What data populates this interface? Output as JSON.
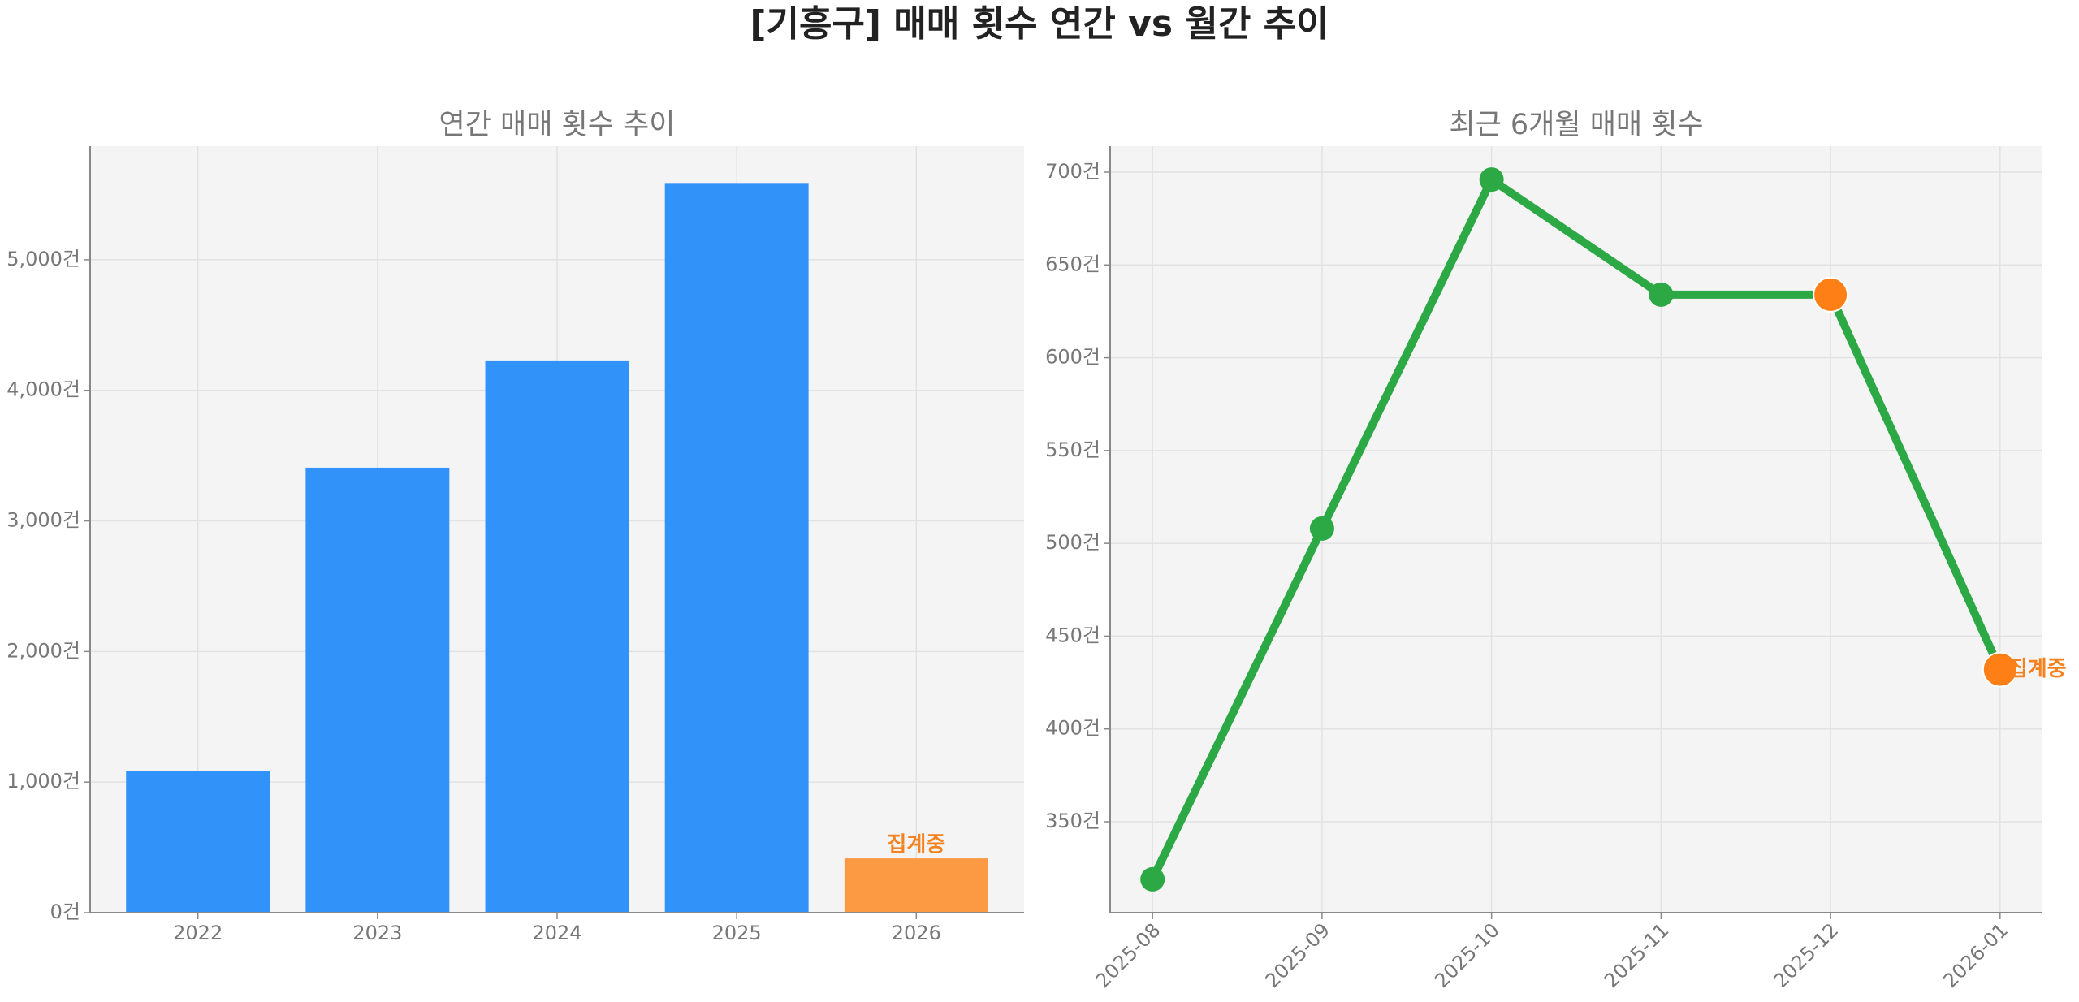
{
  "title": "[기흥구] 매매 횟수 연간 vs 월간 추이",
  "chart_data": [
    {
      "type": "bar",
      "title": "연간 매매 횟수 추이",
      "categories": [
        "2022",
        "2023",
        "2024",
        "2025",
        "2026"
      ],
      "values": [
        1085,
        3408,
        4229,
        5588,
        416
      ],
      "colors": [
        "#3192fa",
        "#3192fa",
        "#3192fa",
        "#3192fa",
        "#fb9a42"
      ],
      "value_notes": [
        null,
        null,
        null,
        null,
        "집계중"
      ],
      "note_color": "#f5821f",
      "ylim": [
        0,
        5870
      ],
      "yticks": [
        {
          "value": 0,
          "label": "0건"
        },
        {
          "value": 1000,
          "label": "1,000건"
        },
        {
          "value": 2000,
          "label": "2,000건"
        },
        {
          "value": 3000,
          "label": "3,000건"
        },
        {
          "value": 4000,
          "label": "4,000건"
        },
        {
          "value": 5000,
          "label": "5,000건"
        }
      ],
      "grid": true
    },
    {
      "type": "line",
      "title": "최근 6개월 매매 횟수",
      "categories": [
        "2025-08",
        "2025-09",
        "2025-10",
        "2025-11",
        "2025-12",
        "2026-01"
      ],
      "values": [
        319,
        508,
        696,
        634,
        634,
        432
      ],
      "color": "#2ca845",
      "marker_colors": [
        "#2ca845",
        "#2ca845",
        "#2ca845",
        "#2ca845",
        "#fd7f16",
        "#fd7f16"
      ],
      "value_notes": [
        null,
        null,
        null,
        null,
        null,
        "집계중"
      ],
      "note_color": "#f5821f",
      "ylim": [
        301,
        714
      ],
      "yticks": [
        {
          "value": 350,
          "label": "350건"
        },
        {
          "value": 400,
          "label": "400건"
        },
        {
          "value": 450,
          "label": "450건"
        },
        {
          "value": 500,
          "label": "500건"
        },
        {
          "value": 550,
          "label": "550건"
        },
        {
          "value": 600,
          "label": "600건"
        },
        {
          "value": 650,
          "label": "650건"
        },
        {
          "value": 700,
          "label": "700건"
        }
      ],
      "grid": true
    }
  ]
}
